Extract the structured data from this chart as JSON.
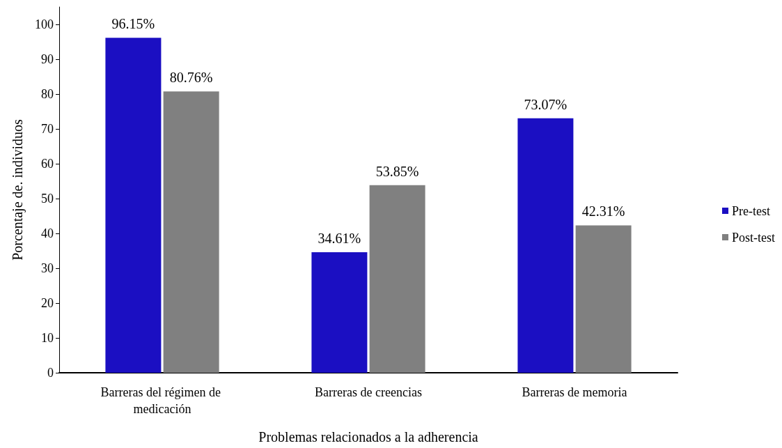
{
  "chart_data": {
    "type": "bar",
    "xlabel": "Problemas relacionados a la adherencia",
    "ylabel": "Porcentaje de. individuos",
    "categories": [
      "Barreras del régimen de medicación",
      "Barreras de creencias",
      "Barreras de memoria"
    ],
    "series": [
      {
        "name": "Pre-test",
        "color": "#1b0fc2",
        "values": [
          96.15,
          34.61,
          73.07
        ],
        "value_labels": [
          "96.15%",
          "34.61%",
          "73.07%"
        ]
      },
      {
        "name": "Post-test",
        "color": "#808080",
        "values": [
          80.76,
          53.85,
          42.31
        ],
        "value_labels": [
          "80.76%",
          "53.85%",
          "42.31%"
        ]
      }
    ],
    "ylim": [
      0,
      105
    ],
    "yticks": [
      0,
      10,
      20,
      30,
      40,
      50,
      60,
      70,
      80,
      90,
      100
    ],
    "grid": false,
    "legend": "right"
  }
}
